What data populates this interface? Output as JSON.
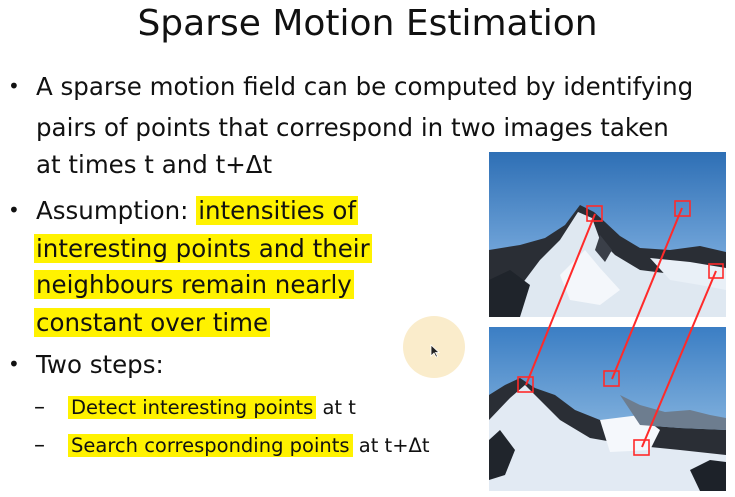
{
  "slide": {
    "title": "Sparse Motion Estimation",
    "bullet1": {
      "line1": "A sparse motion field can be computed by identifying",
      "line2": "pairs of points that correspond in two images taken",
      "line3": "at times t and t+Δt"
    },
    "bullet2": {
      "prefix": "Assumption: ",
      "line1_hl": "intensities of",
      "line2_hl": "interesting points and their",
      "line3_hl": "neighbours remain nearly",
      "line4_hl": "constant over time"
    },
    "bullet3": {
      "label": "Two steps:",
      "steps": [
        {
          "dash": "–",
          "highlight": "Detect interesting points",
          "rest": " at t"
        },
        {
          "dash": "–",
          "highlight": "Search corresponding points",
          "rest": " at t+Δt"
        }
      ]
    },
    "bullet_symbol": "•",
    "colors": {
      "highlight": "#fff200",
      "marker": "#ff2a2a"
    },
    "icons": [
      "mouse-cursor-icon"
    ]
  }
}
